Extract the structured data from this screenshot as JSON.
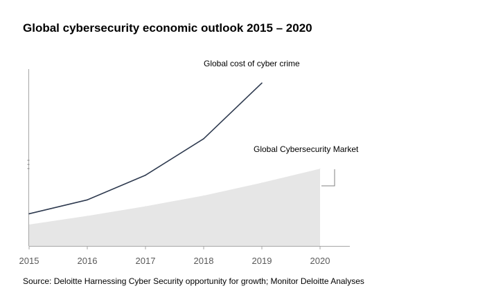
{
  "chart_data": {
    "type": "line",
    "title": "Global cybersecurity economic outlook 2015 – 2020",
    "categories": [
      "2015",
      "2016",
      "2017",
      "2018",
      "2019",
      "2020"
    ],
    "series": [
      {
        "name": "Global cost of cyber crime",
        "mark": "line",
        "x": [
          "2015",
          "2016",
          "2017",
          "2018",
          "2019"
        ],
        "values": [
          3.0,
          4.3,
          6.6,
          10.0,
          15.2
        ],
        "color": "#2e3a4f"
      },
      {
        "name": "Global Cybersecurity Market",
        "mark": "area",
        "x": [
          "2015",
          "2016",
          "2017",
          "2018",
          "2019",
          "2020"
        ],
        "values": [
          2.0,
          2.8,
          3.7,
          4.7,
          5.9,
          7.2
        ],
        "color": "#e6e6e6"
      }
    ],
    "ylim": [
      0,
      16.5
    ],
    "grid": false,
    "legend": "none",
    "y_axis_labels": false
  },
  "source_text": "Source: Deloitte Harnessing Cyber Security opportunity for growth;  Monitor Deloitte Analyses"
}
